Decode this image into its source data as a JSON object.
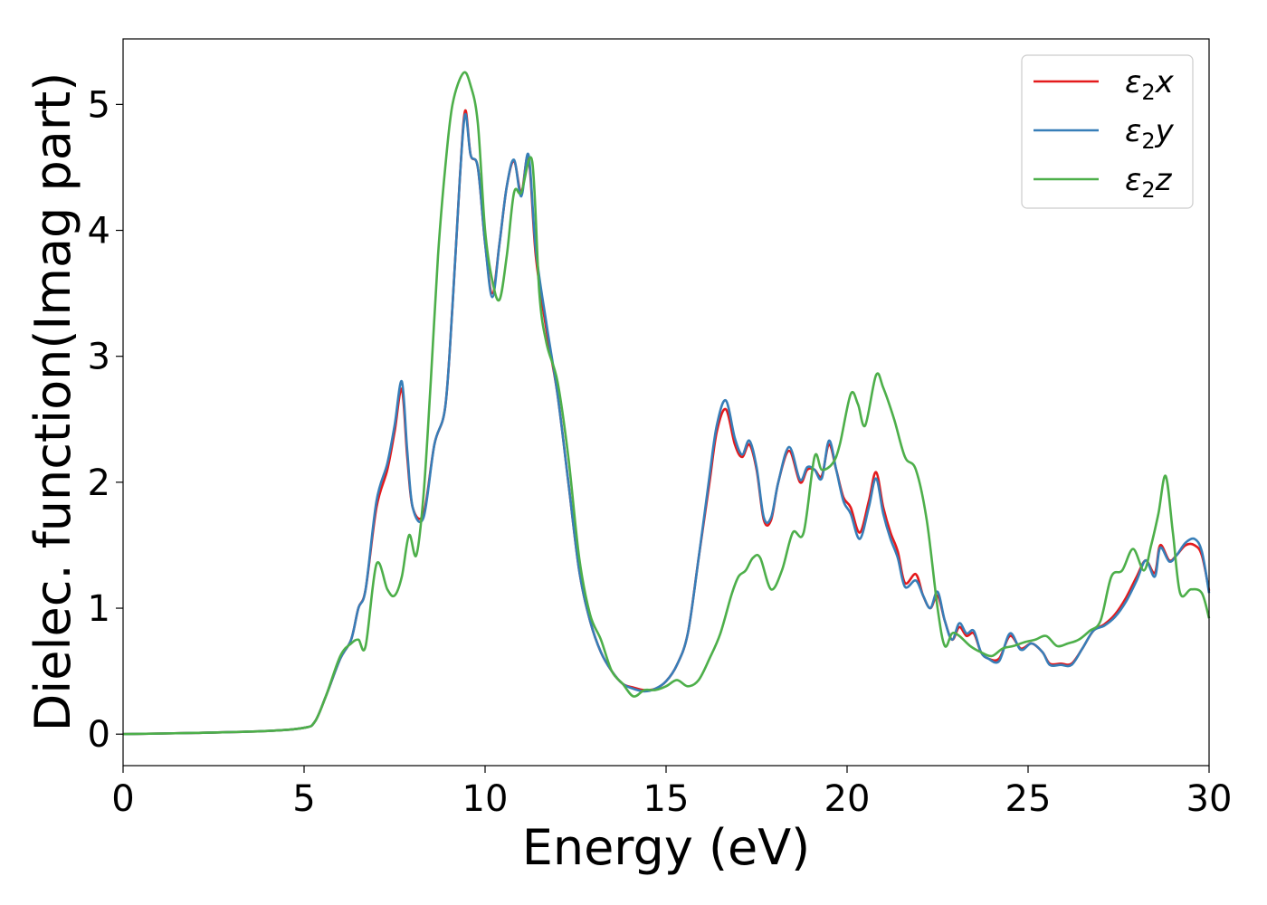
{
  "chart_data": {
    "type": "line",
    "xlabel": "Energy (eV)",
    "ylabel": "Dielec. function(Imag part)",
    "xlim": [
      0,
      30
    ],
    "ylim": [
      -0.25,
      5.52
    ],
    "xticks": [
      0,
      5,
      10,
      15,
      20,
      25,
      30
    ],
    "yticks": [
      0,
      1,
      2,
      3,
      4,
      5
    ],
    "grid": false,
    "legend_position": "top-right",
    "series": [
      {
        "name": "ε₂x",
        "legend": {
          "base": "ε",
          "sub": "2",
          "suffix": "x"
        },
        "color": "#e41a1c",
        "x": [
          0,
          2,
          4,
          5,
          5.3,
          5.6,
          6.0,
          6.3,
          6.5,
          6.7,
          7.0,
          7.3,
          7.5,
          7.7,
          7.85,
          8.0,
          8.3,
          8.6,
          8.9,
          9.1,
          9.3,
          9.45,
          9.6,
          9.8,
          10.0,
          10.2,
          10.4,
          10.6,
          10.8,
          11.0,
          11.2,
          11.4,
          11.7,
          12.0,
          12.3,
          12.6,
          12.9,
          13.2,
          13.5,
          13.8,
          14.1,
          14.4,
          14.7,
          15.0,
          15.3,
          15.6,
          15.9,
          16.2,
          16.4,
          16.65,
          16.9,
          17.1,
          17.3,
          17.5,
          17.7,
          17.9,
          18.1,
          18.4,
          18.7,
          18.9,
          19.1,
          19.3,
          19.5,
          19.7,
          19.9,
          20.1,
          20.35,
          20.6,
          20.8,
          21.0,
          21.2,
          21.4,
          21.6,
          21.9,
          22.1,
          22.3,
          22.5,
          22.7,
          22.9,
          23.1,
          23.3,
          23.5,
          23.7,
          23.9,
          24.2,
          24.5,
          24.8,
          25.1,
          25.4,
          25.6,
          25.9,
          26.2,
          26.5,
          26.8,
          27.1,
          27.4,
          27.7,
          28.0,
          28.25,
          28.5,
          28.65,
          28.9,
          29.1,
          29.35,
          29.6,
          29.8,
          30.0
        ],
        "values": [
          0.0,
          0.01,
          0.025,
          0.05,
          0.1,
          0.3,
          0.6,
          0.75,
          1.0,
          1.15,
          1.8,
          2.1,
          2.4,
          2.74,
          2.2,
          1.8,
          1.75,
          2.3,
          2.6,
          3.4,
          4.4,
          4.95,
          4.6,
          4.5,
          3.9,
          3.5,
          3.9,
          4.35,
          4.55,
          4.3,
          4.58,
          3.8,
          3.2,
          2.7,
          2.0,
          1.3,
          0.9,
          0.65,
          0.5,
          0.4,
          0.37,
          0.35,
          0.36,
          0.42,
          0.55,
          0.8,
          1.4,
          2.0,
          2.4,
          2.58,
          2.3,
          2.2,
          2.3,
          2.1,
          1.7,
          1.7,
          2.0,
          2.25,
          2.0,
          2.1,
          2.1,
          2.05,
          2.3,
          2.1,
          1.88,
          1.8,
          1.6,
          1.85,
          2.08,
          1.8,
          1.6,
          1.45,
          1.2,
          1.27,
          1.1,
          1.0,
          1.1,
          0.9,
          0.75,
          0.85,
          0.78,
          0.8,
          0.65,
          0.6,
          0.6,
          0.78,
          0.68,
          0.72,
          0.65,
          0.56,
          0.56,
          0.56,
          0.68,
          0.82,
          0.87,
          0.95,
          1.08,
          1.25,
          1.38,
          1.28,
          1.5,
          1.38,
          1.42,
          1.5,
          1.5,
          1.42,
          1.14
        ]
      },
      {
        "name": "ε₂y",
        "legend": {
          "base": "ε",
          "sub": "2",
          "suffix": "y"
        },
        "color": "#377eb8",
        "x": [
          0,
          2,
          4,
          5,
          5.3,
          5.6,
          6.0,
          6.3,
          6.5,
          6.7,
          7.0,
          7.3,
          7.5,
          7.7,
          7.85,
          8.0,
          8.3,
          8.6,
          8.9,
          9.1,
          9.3,
          9.45,
          9.6,
          9.8,
          10.0,
          10.2,
          10.4,
          10.6,
          10.8,
          11.0,
          11.2,
          11.4,
          11.7,
          12.0,
          12.3,
          12.6,
          12.9,
          13.2,
          13.5,
          13.8,
          14.1,
          14.4,
          14.7,
          15.0,
          15.3,
          15.6,
          15.9,
          16.2,
          16.4,
          16.65,
          16.9,
          17.1,
          17.3,
          17.5,
          17.7,
          17.9,
          18.1,
          18.4,
          18.7,
          18.9,
          19.1,
          19.3,
          19.5,
          19.7,
          19.9,
          20.1,
          20.35,
          20.6,
          20.8,
          21.0,
          21.2,
          21.4,
          21.6,
          21.9,
          22.1,
          22.3,
          22.5,
          22.7,
          22.9,
          23.1,
          23.3,
          23.5,
          23.7,
          23.9,
          24.2,
          24.5,
          24.8,
          25.1,
          25.4,
          25.6,
          25.9,
          26.2,
          26.5,
          26.8,
          27.1,
          27.4,
          27.7,
          28.0,
          28.25,
          28.5,
          28.65,
          28.9,
          29.1,
          29.35,
          29.6,
          29.8,
          30.0
        ],
        "values": [
          0.0,
          0.01,
          0.025,
          0.05,
          0.1,
          0.3,
          0.6,
          0.75,
          1.0,
          1.15,
          1.85,
          2.15,
          2.45,
          2.8,
          2.25,
          1.8,
          1.72,
          2.3,
          2.6,
          3.4,
          4.4,
          4.92,
          4.6,
          4.5,
          3.9,
          3.47,
          3.9,
          4.35,
          4.56,
          4.27,
          4.6,
          3.85,
          3.25,
          2.7,
          2.0,
          1.3,
          0.9,
          0.65,
          0.5,
          0.4,
          0.36,
          0.34,
          0.36,
          0.42,
          0.55,
          0.8,
          1.4,
          2.05,
          2.45,
          2.65,
          2.35,
          2.22,
          2.33,
          2.12,
          1.72,
          1.72,
          2.0,
          2.28,
          2.02,
          2.12,
          2.1,
          2.03,
          2.33,
          2.1,
          1.85,
          1.75,
          1.55,
          1.8,
          2.03,
          1.75,
          1.55,
          1.4,
          1.17,
          1.22,
          1.1,
          1.0,
          1.13,
          0.9,
          0.75,
          0.88,
          0.8,
          0.82,
          0.65,
          0.6,
          0.58,
          0.8,
          0.67,
          0.72,
          0.65,
          0.55,
          0.55,
          0.55,
          0.68,
          0.82,
          0.86,
          0.93,
          1.05,
          1.22,
          1.38,
          1.25,
          1.48,
          1.37,
          1.42,
          1.52,
          1.55,
          1.45,
          1.12
        ]
      },
      {
        "name": "ε₂z",
        "legend": {
          "base": "ε",
          "sub": "2",
          "suffix": "z"
        },
        "color": "#4daf4a",
        "x": [
          0,
          2,
          4,
          5,
          5.3,
          5.6,
          6.0,
          6.3,
          6.5,
          6.7,
          7.0,
          7.3,
          7.5,
          7.7,
          7.9,
          8.1,
          8.3,
          8.5,
          8.7,
          8.9,
          9.1,
          9.4,
          9.6,
          9.8,
          10.0,
          10.2,
          10.4,
          10.6,
          10.8,
          11.0,
          11.3,
          11.5,
          11.7,
          12.0,
          12.3,
          12.6,
          12.9,
          13.2,
          13.5,
          13.8,
          14.1,
          14.4,
          14.7,
          15.0,
          15.3,
          15.6,
          15.9,
          16.2,
          16.5,
          16.8,
          17.0,
          17.2,
          17.4,
          17.6,
          17.9,
          18.2,
          18.5,
          18.8,
          19.1,
          19.3,
          19.6,
          19.8,
          20.1,
          20.3,
          20.5,
          20.8,
          21.0,
          21.3,
          21.6,
          21.9,
          22.2,
          22.5,
          22.7,
          22.9,
          23.1,
          23.4,
          23.7,
          24.0,
          24.3,
          24.6,
          24.9,
          25.2,
          25.5,
          25.8,
          26.1,
          26.4,
          26.7,
          27.0,
          27.3,
          27.6,
          27.9,
          28.2,
          28.4,
          28.6,
          28.8,
          29.0,
          29.2,
          29.5,
          29.8,
          30.0
        ],
        "values": [
          0.0,
          0.01,
          0.025,
          0.05,
          0.1,
          0.3,
          0.62,
          0.72,
          0.75,
          0.7,
          1.35,
          1.15,
          1.1,
          1.25,
          1.58,
          1.42,
          1.9,
          2.8,
          3.8,
          4.5,
          5.0,
          5.25,
          5.15,
          4.85,
          4.0,
          3.6,
          3.45,
          3.8,
          4.3,
          4.3,
          4.55,
          3.5,
          3.1,
          2.8,
          2.2,
          1.4,
          0.95,
          0.75,
          0.5,
          0.4,
          0.3,
          0.35,
          0.35,
          0.38,
          0.43,
          0.38,
          0.43,
          0.6,
          0.8,
          1.1,
          1.25,
          1.3,
          1.4,
          1.4,
          1.15,
          1.3,
          1.6,
          1.6,
          2.2,
          2.1,
          2.15,
          2.3,
          2.7,
          2.62,
          2.45,
          2.85,
          2.75,
          2.5,
          2.2,
          2.1,
          1.7,
          1.0,
          0.7,
          0.8,
          0.78,
          0.7,
          0.65,
          0.62,
          0.68,
          0.7,
          0.73,
          0.75,
          0.78,
          0.7,
          0.72,
          0.75,
          0.82,
          0.9,
          1.25,
          1.3,
          1.47,
          1.3,
          1.5,
          1.75,
          2.05,
          1.6,
          1.12,
          1.15,
          1.12,
          0.92
        ]
      }
    ]
  }
}
